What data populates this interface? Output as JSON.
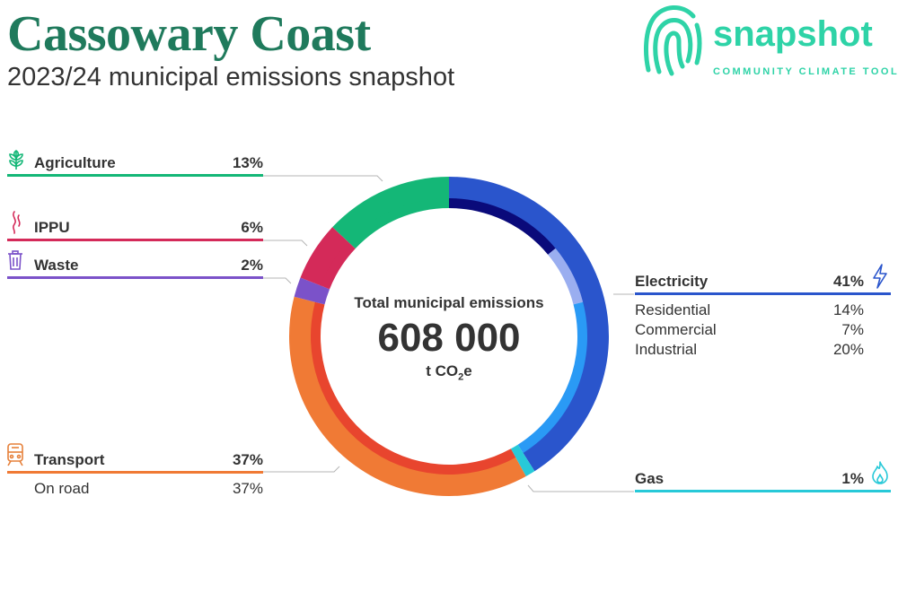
{
  "header": {
    "title": "Cassowary Coast",
    "subtitle": "2023/24 municipal emissions snapshot"
  },
  "logo": {
    "word": "snapshot",
    "tagline": "COMMUNITY CLIMATE TOOL",
    "color": "#2ed3a7",
    "icon": "fingerprint-icon"
  },
  "center": {
    "title": "Total municipal emissions",
    "value": "608 000",
    "unit_prefix": "t CO",
    "unit_sub": "2",
    "unit_suffix": "e"
  },
  "chart_data": {
    "type": "pie",
    "total": 608000,
    "unit": "t CO2e",
    "sectors": [
      {
        "name": "Electricity",
        "value": 41,
        "label": "41%",
        "color": "#2a55cc",
        "icon": "lightning-icon",
        "sub": [
          {
            "name": "Residential",
            "value": 14,
            "label": "14%",
            "color": "#0a0a7a"
          },
          {
            "name": "Commercial",
            "value": 7,
            "label": "7%",
            "color": "#9aaef0"
          },
          {
            "name": "Industrial",
            "value": 20,
            "label": "20%",
            "color": "#2a9af5"
          }
        ]
      },
      {
        "name": "Gas",
        "value": 1,
        "label": "1%",
        "color": "#27c9d8",
        "icon": "flame-icon",
        "sub": [
          {
            "name": "",
            "value": 1,
            "label": "",
            "color": "#27c9d8"
          }
        ]
      },
      {
        "name": "Transport",
        "value": 37,
        "label": "37%",
        "color": "#f07a35",
        "icon": "train-icon",
        "sub": [
          {
            "name": "On road",
            "value": 37,
            "label": "37%",
            "color": "#e8452e"
          }
        ]
      },
      {
        "name": "Waste",
        "value": 2,
        "label": "2%",
        "color": "#7b52c9",
        "icon": "bin-icon",
        "sub": [
          {
            "name": "",
            "value": 2,
            "label": "",
            "color": "#7b52c9"
          }
        ]
      },
      {
        "name": "IPPU",
        "value": 6,
        "label": "6%",
        "color": "#d42a59",
        "icon": "smoke-icon",
        "sub": [
          {
            "name": "",
            "value": 6,
            "label": "",
            "color": "#d42a59"
          }
        ]
      },
      {
        "name": "Agriculture",
        "value": 13,
        "label": "13%",
        "color": "#14b777",
        "icon": "wheat-icon",
        "sub": [
          {
            "name": "",
            "value": 13,
            "label": "",
            "color": "#14b777"
          }
        ]
      }
    ]
  }
}
